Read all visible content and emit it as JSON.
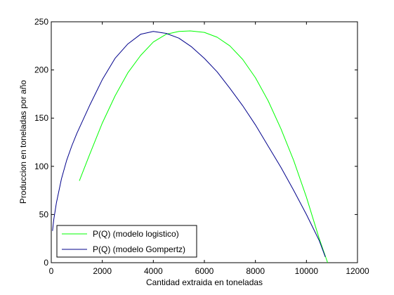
{
  "chart_data": {
    "type": "line",
    "title": "",
    "xlabel": "Cantidad extraida en toneladas",
    "ylabel": "Produccion en toneladas por año",
    "xlim": [
      0,
      12000
    ],
    "ylim": [
      0,
      250
    ],
    "xticks": [
      0,
      2000,
      4000,
      6000,
      8000,
      10000,
      12000
    ],
    "yticks": [
      0,
      50,
      100,
      150,
      200,
      250
    ],
    "grid": false,
    "legend_position": "bottom-left",
    "series": [
      {
        "name": "P(Q) (modelo logistico)",
        "color": "#00ff00",
        "x": [
          1100,
          1500,
          2000,
          2500,
          3000,
          3500,
          4000,
          4500,
          5000,
          5450,
          6000,
          6500,
          7000,
          7500,
          8000,
          8500,
          9000,
          9500,
          10000,
          10500,
          10830
        ],
        "y": [
          85,
          112,
          145,
          173,
          197,
          215,
          229,
          237,
          240,
          240.5,
          239,
          234,
          225,
          211,
          192,
          168,
          139,
          106,
          68,
          25,
          0
        ]
      },
      {
        "name": "P(Q) (modelo Gompertz)",
        "color": "#00008b",
        "x": [
          50,
          100,
          200,
          400,
          600,
          800,
          1000,
          1500,
          2000,
          2500,
          3000,
          3500,
          4000,
          4500,
          5000,
          5500,
          6000,
          6500,
          7000,
          7500,
          8000,
          8500,
          9000,
          9500,
          10000,
          10500,
          10740
        ],
        "y": [
          33,
          45,
          62,
          87,
          106,
          121,
          134,
          163,
          190,
          212,
          227,
          237,
          240,
          238,
          233,
          224,
          212,
          198,
          181,
          163,
          143,
          121,
          99,
          75,
          50,
          23,
          6
        ]
      }
    ]
  }
}
